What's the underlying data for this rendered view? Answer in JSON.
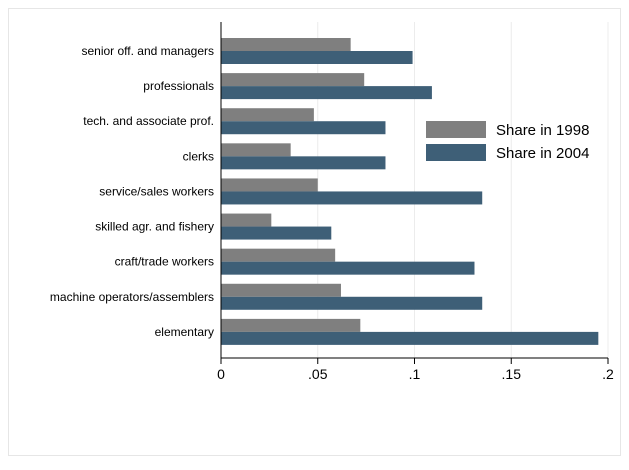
{
  "chart_data": {
    "type": "bar",
    "orientation": "horizontal",
    "categories": [
      "senior off. and managers",
      "professionals",
      "tech. and associate prof.",
      "clerks",
      "service/sales workers",
      "skilled agr. and fishery",
      "craft/trade workers",
      "machine operators/assemblers",
      "elementary"
    ],
    "series": [
      {
        "name": "Share in 1998",
        "color": "#7f7f7f",
        "values": [
          0.067,
          0.074,
          0.048,
          0.036,
          0.05,
          0.026,
          0.059,
          0.062,
          0.072
        ]
      },
      {
        "name": "Share in 2004",
        "color": "#3e5f77",
        "values": [
          0.099,
          0.109,
          0.085,
          0.085,
          0.135,
          0.057,
          0.131,
          0.135,
          0.195
        ]
      }
    ],
    "xlim": [
      0,
      0.2
    ],
    "xticks": [
      {
        "value": 0,
        "label": "0"
      },
      {
        "value": 0.05,
        "label": ".05"
      },
      {
        "value": 0.1,
        "label": ".1"
      },
      {
        "value": 0.15,
        "label": ".15"
      },
      {
        "value": 0.2,
        "label": ".2"
      }
    ],
    "grid": "vertical",
    "legend": "right",
    "title": "",
    "xlabel": "",
    "ylabel": ""
  }
}
